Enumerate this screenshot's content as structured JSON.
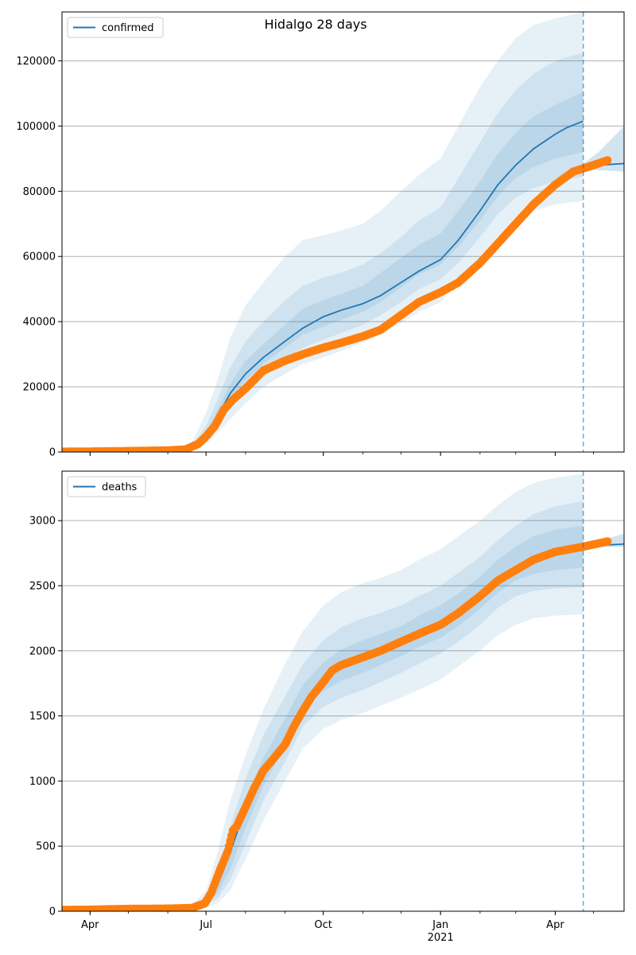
{
  "figure": {
    "title": "Hidalgo 28 days"
  },
  "colors": {
    "model": "#1f77b4",
    "observed": "#ff7f0e",
    "band": "#1f77b4",
    "grid": "#b0b0b0"
  },
  "x_axis": {
    "ticks": [
      {
        "date": "2020-04-01",
        "label": "Apr",
        "sub": ""
      },
      {
        "date": "2020-07-01",
        "label": "Jul",
        "sub": ""
      },
      {
        "date": "2020-10-01",
        "label": "Oct",
        "sub": ""
      },
      {
        "date": "2021-01-01",
        "label": "Jan",
        "sub": "2021"
      },
      {
        "date": "2021-04-01",
        "label": "Apr",
        "sub": ""
      }
    ],
    "xlim": [
      "2020-03-10",
      "2021-05-25"
    ],
    "forecast_date": "2021-04-23"
  },
  "chart_data": [
    {
      "type": "line",
      "name": "confirmed",
      "legend": "confirmed",
      "legend_position": "upper-left",
      "grid": "y",
      "ylim": [
        0,
        135000
      ],
      "yticks": [
        0,
        20000,
        40000,
        60000,
        80000,
        100000,
        120000
      ],
      "ytick_labels": [
        "0",
        "20000",
        "40000",
        "60000",
        "80000",
        "100000",
        "120000"
      ],
      "observed": {
        "x": [
          "2020-03-10",
          "2020-04-01",
          "2020-05-01",
          "2020-06-01",
          "2020-06-15",
          "2020-06-25",
          "2020-07-01",
          "2020-07-08",
          "2020-07-15",
          "2020-07-22",
          "2020-08-01",
          "2020-08-15",
          "2020-09-01",
          "2020-09-15",
          "2020-10-01",
          "2020-10-15",
          "2020-11-01",
          "2020-11-15",
          "2020-12-01",
          "2020-12-15",
          "2021-01-01",
          "2021-01-15",
          "2021-02-01",
          "2021-02-15",
          "2021-03-01",
          "2021-03-15",
          "2021-04-01",
          "2021-04-15",
          "2021-05-01",
          "2021-05-12"
        ],
        "y": [
          100,
          150,
          300,
          500,
          800,
          2500,
          4800,
          8000,
          13000,
          16000,
          19500,
          25000,
          28000,
          30000,
          32000,
          33500,
          35500,
          37500,
          42000,
          46000,
          49000,
          52000,
          58000,
          64000,
          70000,
          76000,
          82000,
          86000,
          88000,
          89500
        ]
      },
      "median": {
        "x": [
          "2020-03-10",
          "2020-05-01",
          "2020-06-15",
          "2020-06-25",
          "2020-07-01",
          "2020-07-10",
          "2020-07-20",
          "2020-08-01",
          "2020-08-15",
          "2020-09-01",
          "2020-09-15",
          "2020-10-01",
          "2020-10-15",
          "2020-11-01",
          "2020-11-15",
          "2020-12-01",
          "2020-12-15",
          "2021-01-01",
          "2021-01-15",
          "2021-02-01",
          "2021-02-15",
          "2021-03-01",
          "2021-03-15",
          "2021-04-01",
          "2021-04-10",
          "2021-04-23"
        ],
        "y": [
          100,
          300,
          800,
          2500,
          5000,
          11000,
          18000,
          24000,
          29000,
          34000,
          38000,
          41500,
          43500,
          45500,
          48000,
          52000,
          55500,
          59000,
          65000,
          74000,
          82000,
          88000,
          93000,
          97500,
          99500,
          101500
        ]
      },
      "bands": {
        "x": [
          "2020-06-20",
          "2020-07-01",
          "2020-07-10",
          "2020-07-20",
          "2020-08-01",
          "2020-08-15",
          "2020-09-01",
          "2020-09-15",
          "2020-10-01",
          "2020-10-15",
          "2020-11-01",
          "2020-11-15",
          "2020-12-01",
          "2020-12-15",
          "2021-01-01",
          "2021-01-15",
          "2021-02-01",
          "2021-02-15",
          "2021-03-01",
          "2021-03-15",
          "2021-04-01",
          "2021-04-23"
        ],
        "outer_low": [
          500,
          2500,
          6000,
          10000,
          15000,
          20000,
          24000,
          27000,
          29000,
          31000,
          33500,
          36000,
          39500,
          43000,
          46000,
          52000,
          60000,
          66000,
          71000,
          74000,
          76000,
          77000
        ],
        "outer_high": [
          3000,
          12000,
          22000,
          35000,
          45000,
          52000,
          60000,
          65000,
          66500,
          68000,
          70000,
          74000,
          80000,
          85000,
          90000,
          100000,
          112000,
          120000,
          127000,
          131000,
          133000,
          135000
        ],
        "mid_low": [
          700,
          3500,
          8500,
          14000,
          19000,
          24000,
          28500,
          32000,
          34500,
          36500,
          39000,
          42000,
          46000,
          50000,
          53000,
          58000,
          66000,
          73000,
          78000,
          81000,
          83000,
          84500
        ],
        "mid_high": [
          2000,
          8000,
          16000,
          26000,
          34000,
          40000,
          46500,
          51000,
          53500,
          55000,
          57500,
          61000,
          66000,
          71000,
          75000,
          84000,
          95000,
          104000,
          111000,
          116000,
          120000,
          122500
        ],
        "inner_low": [
          800,
          4000,
          10000,
          16500,
          22000,
          27000,
          32000,
          36000,
          38500,
          40500,
          43000,
          46000,
          50500,
          54500,
          57500,
          63000,
          71000,
          78500,
          84000,
          87500,
          90000,
          92000
        ],
        "inner_high": [
          1500,
          6000,
          13000,
          21000,
          28000,
          33000,
          39000,
          44000,
          46500,
          48500,
          51000,
          55000,
          59500,
          63500,
          67000,
          74000,
          83000,
          91500,
          98000,
          103000,
          106500,
          110500
        ]
      },
      "forecast": {
        "x": [
          "2021-04-23",
          "2021-05-05",
          "2021-05-25"
        ],
        "median": [
          87500,
          88000,
          88500
        ],
        "low": [
          86800,
          86500,
          86000
        ],
        "high": [
          88500,
          92000,
          100000
        ]
      }
    },
    {
      "type": "line",
      "name": "deaths",
      "legend": "deaths",
      "legend_position": "upper-left",
      "grid": "y",
      "ylim": [
        0,
        3380
      ],
      "yticks": [
        0,
        500,
        1000,
        1500,
        2000,
        2500,
        3000
      ],
      "ytick_labels": [
        "0",
        "500",
        "1000",
        "1500",
        "2000",
        "2500",
        "3000"
      ],
      "observed": {
        "x": [
          "2020-03-10",
          "2020-04-01",
          "2020-05-01",
          "2020-06-01",
          "2020-06-20",
          "2020-06-30",
          "2020-07-05",
          "2020-07-12",
          "2020-07-18",
          "2020-07-22",
          "2020-07-25",
          "2020-08-01",
          "2020-08-08",
          "2020-08-15",
          "2020-08-22",
          "2020-09-01",
          "2020-09-08",
          "2020-09-15",
          "2020-09-22",
          "2020-10-01",
          "2020-10-08",
          "2020-10-15",
          "2020-11-01",
          "2020-11-15",
          "2020-12-01",
          "2020-12-15",
          "2021-01-01",
          "2021-01-15",
          "2021-02-01",
          "2021-02-15",
          "2021-03-01",
          "2021-03-15",
          "2021-04-01",
          "2021-04-23",
          "2021-05-12"
        ],
        "y": [
          10,
          12,
          18,
          20,
          25,
          60,
          140,
          320,
          460,
          620,
          650,
          800,
          950,
          1080,
          1160,
          1280,
          1420,
          1540,
          1650,
          1760,
          1850,
          1890,
          1950,
          2000,
          2070,
          2130,
          2200,
          2290,
          2420,
          2540,
          2620,
          2700,
          2760,
          2800,
          2840
        ]
      },
      "median": {
        "x": [
          "2020-03-10",
          "2020-06-01",
          "2020-06-20",
          "2020-07-01",
          "2020-07-10",
          "2020-07-20",
          "2020-08-01",
          "2020-08-15",
          "2020-09-01",
          "2020-09-15",
          "2020-10-01",
          "2020-10-15",
          "2020-11-01"
        ],
        "y": [
          10,
          20,
          25,
          70,
          200,
          450,
          800,
          1080,
          1300,
          1560,
          1760,
          1880,
          1940
        ]
      },
      "bands": {
        "x": [
          "2020-06-20",
          "2020-07-01",
          "2020-07-10",
          "2020-07-20",
          "2020-08-01",
          "2020-08-15",
          "2020-09-01",
          "2020-09-15",
          "2020-10-01",
          "2020-10-15",
          "2020-11-01",
          "2020-11-15",
          "2020-12-01",
          "2020-12-15",
          "2021-01-01",
          "2021-01-15",
          "2021-02-01",
          "2021-02-15",
          "2021-03-01",
          "2021-03-15",
          "2021-04-01",
          "2021-04-23"
        ],
        "outer_low": [
          10,
          30,
          60,
          160,
          400,
          700,
          1000,
          1250,
          1400,
          1470,
          1520,
          1580,
          1640,
          1700,
          1780,
          1880,
          2000,
          2120,
          2200,
          2250,
          2270,
          2280
        ],
        "outer_high": [
          50,
          160,
          450,
          850,
          1200,
          1550,
          1900,
          2150,
          2350,
          2450,
          2520,
          2560,
          2620,
          2700,
          2780,
          2880,
          3000,
          3120,
          3220,
          3290,
          3330,
          3360
        ],
        "mid_low": [
          15,
          45,
          100,
          240,
          520,
          850,
          1150,
          1420,
          1570,
          1640,
          1700,
          1760,
          1830,
          1900,
          1980,
          2070,
          2200,
          2330,
          2420,
          2460,
          2480,
          2490
        ],
        "mid_high": [
          35,
          110,
          300,
          650,
          1020,
          1350,
          1650,
          1900,
          2080,
          2180,
          2250,
          2290,
          2350,
          2420,
          2500,
          2600,
          2720,
          2850,
          2960,
          3050,
          3110,
          3150
        ],
        "inner_low": [
          20,
          60,
          140,
          320,
          640,
          960,
          1280,
          1540,
          1690,
          1770,
          1830,
          1890,
          1960,
          2030,
          2100,
          2190,
          2320,
          2450,
          2540,
          2590,
          2620,
          2640
        ],
        "inner_high": [
          28,
          85,
          220,
          480,
          850,
          1180,
          1480,
          1740,
          1910,
          2010,
          2080,
          2130,
          2190,
          2270,
          2350,
          2440,
          2570,
          2700,
          2800,
          2880,
          2930,
          2960
        ]
      },
      "forecast": {
        "x": [
          "2021-04-23",
          "2021-05-05",
          "2021-05-25"
        ],
        "median": [
          2800,
          2810,
          2820
        ],
        "low": [
          2790,
          2795,
          2800
        ],
        "high": [
          2810,
          2840,
          2900
        ]
      }
    }
  ]
}
